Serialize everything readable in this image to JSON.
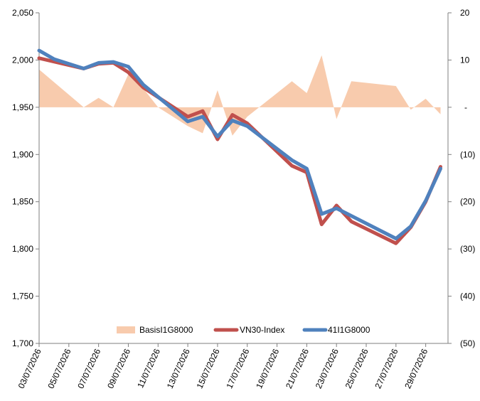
{
  "chart_data": {
    "type": "line",
    "title": "",
    "xlabel": "",
    "ylabel": "",
    "x": [
      "03/07/2026",
      "04/07/2026",
      "06/07/2026",
      "07/07/2026",
      "08/07/2026",
      "09/07/2026",
      "10/07/2026",
      "13/07/2026",
      "14/07/2026",
      "15/07/2026",
      "16/07/2026",
      "17/07/2026",
      "20/07/2026",
      "21/07/2026",
      "22/07/2026",
      "23/07/2026",
      "24/07/2026",
      "27/07/2026",
      "28/07/2026",
      "29/07/2026",
      "30/07/2026"
    ],
    "x_tick_labels": [
      "03/07/2026",
      "05/07/2026",
      "07/07/2026",
      "09/07/2026",
      "11/07/2026",
      "13/07/2026",
      "15/07/2026",
      "17/07/2026",
      "19/07/2026",
      "21/07/2026",
      "23/07/2026",
      "25/07/2026",
      "27/07/2026",
      "29/07/2026"
    ],
    "y_left": {
      "min": 1700,
      "max": 2050,
      "tick_labels": [
        "1,700",
        "1,750",
        "1,800",
        "1,850",
        "1,900",
        "1,950",
        "2,000",
        "2,050"
      ]
    },
    "y_right": {
      "min": -50,
      "max": 20,
      "tick_labels": [
        "(50)",
        "(40)",
        "(30)",
        "(20)",
        "(10)",
        "-",
        "10",
        "20"
      ]
    },
    "series": [
      {
        "name": "BasisI1G8000",
        "kind": "area",
        "axis": "right",
        "color": "#f8cbad",
        "points": [
          [
            "2026-07-03",
            8
          ],
          [
            "2026-07-06",
            0
          ],
          [
            "2026-07-07",
            2
          ],
          [
            "2026-07-08",
            0
          ],
          [
            "2026-07-09",
            7
          ],
          [
            "2026-07-10",
            4
          ],
          [
            "2026-07-11",
            0
          ],
          [
            "2026-07-13",
            -4
          ],
          [
            "2026-07-14",
            -5.5
          ],
          [
            "2026-07-15",
            3.6
          ],
          [
            "2026-07-16",
            -6
          ],
          [
            "2026-07-17",
            -2
          ],
          [
            "2026-07-20",
            5.5
          ],
          [
            "2026-07-21",
            3
          ],
          [
            "2026-07-22",
            11
          ],
          [
            "2026-07-23",
            -2.5
          ],
          [
            "2026-07-24",
            5.5
          ],
          [
            "2026-07-27",
            4.5
          ],
          [
            "2026-07-28",
            -0.5
          ],
          [
            "2026-07-29",
            1.8
          ],
          [
            "2026-07-30",
            -1.5
          ]
        ]
      },
      {
        "name": "VN30-Index",
        "kind": "line",
        "axis": "left",
        "color": "#c0504d",
        "points": [
          [
            "2026-07-03",
            2002
          ],
          [
            "2026-07-06",
            1991
          ],
          [
            "2026-07-07",
            1996
          ],
          [
            "2026-07-08",
            1997
          ],
          [
            "2026-07-09",
            1987
          ],
          [
            "2026-07-10",
            1971
          ],
          [
            "2026-07-13",
            1940
          ],
          [
            "2026-07-14",
            1946
          ],
          [
            "2026-07-15",
            1916
          ],
          [
            "2026-07-16",
            1942
          ],
          [
            "2026-07-17",
            1933
          ],
          [
            "2026-07-20",
            1888
          ],
          [
            "2026-07-21",
            1881
          ],
          [
            "2026-07-22",
            1826
          ],
          [
            "2026-07-23",
            1846
          ],
          [
            "2026-07-24",
            1829
          ],
          [
            "2026-07-27",
            1806
          ],
          [
            "2026-07-28",
            1823
          ],
          [
            "2026-07-29",
            1850
          ],
          [
            "2026-07-30",
            1887
          ]
        ]
      },
      {
        "name": "41I1G8000",
        "kind": "line",
        "axis": "left",
        "color": "#4f81bd",
        "points": [
          [
            "2026-07-03",
            2010
          ],
          [
            "2026-07-04",
            2001
          ],
          [
            "2026-07-06",
            1991
          ],
          [
            "2026-07-07",
            1997
          ],
          [
            "2026-07-08",
            1998
          ],
          [
            "2026-07-09",
            1993
          ],
          [
            "2026-07-10",
            1974
          ],
          [
            "2026-07-13",
            1935
          ],
          [
            "2026-07-14",
            1940
          ],
          [
            "2026-07-15",
            1919
          ],
          [
            "2026-07-16",
            1936
          ],
          [
            "2026-07-17",
            1930
          ],
          [
            "2026-07-20",
            1894
          ],
          [
            "2026-07-21",
            1885
          ],
          [
            "2026-07-22",
            1837
          ],
          [
            "2026-07-23",
            1843
          ],
          [
            "2026-07-24",
            1835
          ],
          [
            "2026-07-27",
            1811
          ],
          [
            "2026-07-28",
            1824
          ],
          [
            "2026-07-29",
            1851
          ],
          [
            "2026-07-30",
            1885
          ]
        ]
      }
    ],
    "legend": {
      "placement": "bottom-center",
      "items": [
        {
          "label": "BasisI1G8000",
          "color": "#f8cbad",
          "kind": "area"
        },
        {
          "label": "VN30-Index",
          "color": "#c0504d",
          "kind": "line"
        },
        {
          "label": "41I1G8000",
          "color": "#4f81bd",
          "kind": "line"
        }
      ]
    },
    "grid": false
  }
}
